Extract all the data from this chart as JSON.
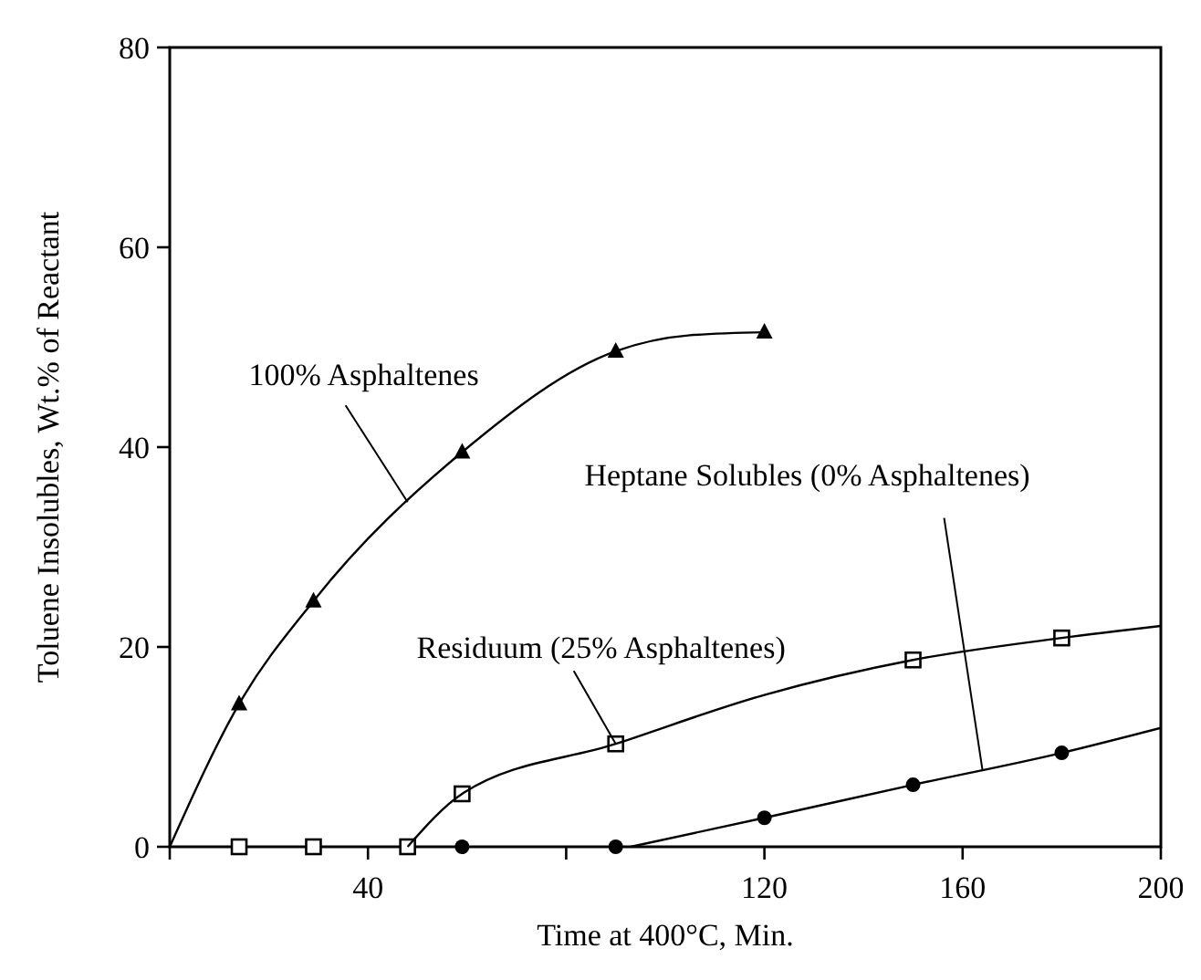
{
  "chart_data": {
    "type": "scatter",
    "xlabel": "Time at 400°C, Min.",
    "ylabel": "Toluene Insolubles, Wt.% of Reactant",
    "xlim": [
      0,
      200
    ],
    "ylim": [
      0,
      80
    ],
    "xticks": [
      {
        "value": 0,
        "label": null
      },
      40,
      {
        "value": 80,
        "label": null
      },
      120,
      160,
      200
    ],
    "yticks": [
      0,
      20,
      40,
      60,
      80
    ],
    "grid": false,
    "series": [
      {
        "marker": "triangle",
        "color": "#000000",
        "x": [
          14,
          29,
          59,
          90,
          120
        ],
        "values": [
          14.3,
          24.6,
          39.5,
          49.6,
          51.5
        ]
      },
      {
        "marker": "square",
        "color": "#000000",
        "x": [
          14,
          29,
          48,
          59,
          90,
          150,
          180
        ],
        "values": [
          0,
          0,
          0,
          5.3,
          10.3,
          18.7,
          20.9
        ]
      },
      {
        "marker": "circle",
        "color": "#000000",
        "x": [
          59,
          90,
          120,
          150,
          180
        ],
        "values": [
          0,
          0,
          2.9,
          6.2,
          9.4
        ]
      },
      {
        "type": "line",
        "marker": "none",
        "line_style": "solid",
        "color": "#000000",
        "x": [
          0,
          14,
          29,
          59,
          90,
          105,
          120
        ],
        "values": [
          0,
          14.3,
          24.6,
          39.5,
          49.6,
          51.2,
          51.5
        ]
      },
      {
        "type": "line",
        "marker": "none",
        "line_style": "solid",
        "color": "#000000",
        "x": [
          48,
          59,
          90,
          120,
          150,
          180,
          200
        ],
        "values": [
          0,
          5.3,
          10.3,
          15.2,
          18.7,
          20.9,
          22.1
        ]
      },
      {
        "type": "line",
        "marker": "none",
        "line_style": "solid",
        "color": "#000000",
        "x": [
          93,
          120,
          150,
          180,
          200
        ],
        "values": [
          0,
          2.9,
          6.2,
          9.4,
          11.9
        ]
      }
    ],
    "annotations": [
      {
        "text": "100% Asphaltenes",
        "x": 48,
        "y": 34.5
      },
      {
        "text": "Residuum (25% Asphaltenes)",
        "x": 90,
        "y": 10.3
      },
      {
        "text": "Heptane Solubles (0% Asphaltenes)",
        "x": 164,
        "y": 7.7
      }
    ]
  }
}
